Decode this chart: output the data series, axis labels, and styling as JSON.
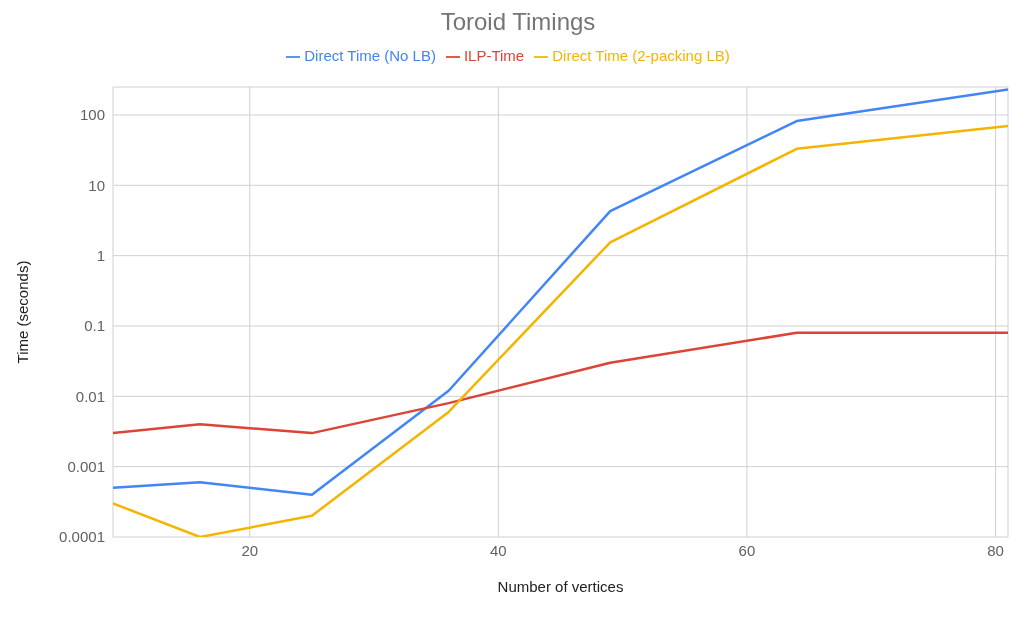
{
  "chart_data": {
    "type": "line",
    "title": "Toroid Timings",
    "xlabel": "Number of vertices",
    "ylabel": "Time (seconds)",
    "x": [
      9,
      16,
      25,
      36,
      49,
      64,
      81
    ],
    "series": [
      {
        "name": "Direct Time (No LB)",
        "color": "#4285f4",
        "values": [
          0.0005,
          0.0006,
          0.0004,
          0.012,
          4.3,
          82,
          230
        ]
      },
      {
        "name": "ILP-Time",
        "color": "#db4437",
        "values": [
          0.003,
          0.004,
          0.003,
          0.008,
          0.03,
          0.08,
          0.08
        ]
      },
      {
        "name": "Direct Time (2-packing LB)",
        "color": "#f4b400",
        "values": [
          0.0003,
          0.0001,
          0.0002,
          0.006,
          1.55,
          33,
          70
        ]
      }
    ],
    "xlim": [
      9,
      81
    ],
    "xticks": [
      20,
      40,
      60,
      80
    ],
    "ylim": [
      0.0001,
      250
    ],
    "yticks": [
      0.0001,
      0.001,
      0.01,
      0.1,
      1,
      10,
      100
    ],
    "log": true,
    "grid": true,
    "legend": "top"
  }
}
